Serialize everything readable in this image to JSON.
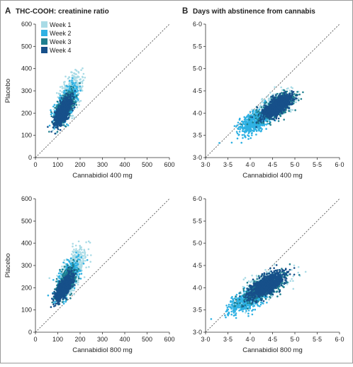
{
  "panels": {
    "a": {
      "letter": "A",
      "title": "THC-COOH: creatinine ratio"
    },
    "b": {
      "letter": "B",
      "title": "Days with abstinence from cannabis"
    }
  },
  "legend": [
    "Week 1",
    "Week 2",
    "Week 3",
    "Week 4"
  ],
  "colors": {
    "week1": "#a9dbe6",
    "week2": "#2fb1e3",
    "week3": "#1f7f8f",
    "week4": "#17508a",
    "diagonal": "#555555",
    "axis": "#333333",
    "border": "#9a9a9a"
  },
  "chart_data": [
    {
      "id": "A-top",
      "type": "scatter",
      "title": "THC-COOH: creatinine ratio",
      "xlabel": "Cannabidiol 400 mg",
      "ylabel": "Placebo",
      "xlim": [
        0,
        600
      ],
      "ylim": [
        0,
        600
      ],
      "xticks": [
        "0",
        "100",
        "200",
        "300",
        "400",
        "500",
        "600"
      ],
      "yticks": [
        "0",
        "100",
        "200",
        "300",
        "400",
        "500",
        "600"
      ],
      "reference_line": "y = x",
      "series": [
        {
          "name": "Week 1",
          "center": [
            150,
            275
          ],
          "spread": [
            28,
            48
          ],
          "corr": 0.6,
          "n": 600
        },
        {
          "name": "Week 2",
          "center": [
            140,
            245
          ],
          "spread": [
            24,
            42
          ],
          "corr": 0.65,
          "n": 520
        },
        {
          "name": "Week 3",
          "center": [
            130,
            222
          ],
          "spread": [
            22,
            36
          ],
          "corr": 0.65,
          "n": 520
        },
        {
          "name": "Week 4",
          "center": [
            122,
            205
          ],
          "spread": [
            18,
            30
          ],
          "corr": 0.7,
          "n": 800
        }
      ]
    },
    {
      "id": "B-top",
      "type": "scatter",
      "title": "Days with abstinence from cannabis",
      "xlabel": "Cannabidiol 400 mg",
      "ylabel": "",
      "xlim": [
        3.0,
        6.0
      ],
      "ylim": [
        3.0,
        6.0
      ],
      "xticks": [
        "3·0",
        "3·5",
        "4·0",
        "4·5",
        "5·0",
        "5·5",
        "6·0"
      ],
      "yticks": [
        "3·0",
        "3·5",
        "4·0",
        "4·5",
        "5·0",
        "5·5",
        "6·0"
      ],
      "reference_line": "y = x",
      "series": [
        {
          "name": "Week 1",
          "center": [
            4.55,
            4.15
          ],
          "spread": [
            0.22,
            0.17
          ],
          "corr": 0.6,
          "n": 450
        },
        {
          "name": "Week 2",
          "center": [
            4.1,
            3.8
          ],
          "spread": [
            0.18,
            0.14
          ],
          "corr": 0.6,
          "n": 500
        },
        {
          "name": "Week 3",
          "center": [
            4.6,
            4.15
          ],
          "spread": [
            0.2,
            0.16
          ],
          "corr": 0.7,
          "n": 550
        },
        {
          "name": "Week 4",
          "center": [
            4.6,
            4.15
          ],
          "spread": [
            0.16,
            0.13
          ],
          "corr": 0.7,
          "n": 950
        }
      ]
    },
    {
      "id": "A-bottom",
      "type": "scatter",
      "title": "",
      "xlabel": "Cannabidiol 800 mg",
      "ylabel": "Placebo",
      "xlim": [
        0,
        600
      ],
      "ylim": [
        0,
        600
      ],
      "xticks": [
        "0",
        "100",
        "200",
        "300",
        "400",
        "500",
        "600"
      ],
      "yticks": [
        "0",
        "100",
        "200",
        "300",
        "400",
        "500",
        "600"
      ],
      "reference_line": "y = x",
      "series": [
        {
          "name": "Week 1",
          "center": [
            160,
            270
          ],
          "spread": [
            30,
            50
          ],
          "corr": 0.6,
          "n": 600
        },
        {
          "name": "Week 2",
          "center": [
            145,
            240
          ],
          "spread": [
            26,
            42
          ],
          "corr": 0.65,
          "n": 520
        },
        {
          "name": "Week 3",
          "center": [
            135,
            220
          ],
          "spread": [
            22,
            36
          ],
          "corr": 0.65,
          "n": 520
        },
        {
          "name": "Week 4",
          "center": [
            128,
            200
          ],
          "spread": [
            18,
            28
          ],
          "corr": 0.7,
          "n": 800
        }
      ]
    },
    {
      "id": "B-bottom",
      "type": "scatter",
      "title": "",
      "xlabel": "Cannabidiol 800 mg",
      "ylabel": "",
      "xlim": [
        3.0,
        6.0
      ],
      "ylim": [
        3.0,
        6.0
      ],
      "xticks": [
        "3·0",
        "3·5",
        "4·0",
        "4·5",
        "5·0",
        "5·5",
        "6·0"
      ],
      "yticks": [
        "3·0",
        "3·5",
        "4·0",
        "4·5",
        "5·0",
        "5·5",
        "6·0"
      ],
      "reference_line": "y = x",
      "series": [
        {
          "name": "Week 1",
          "center": [
            4.35,
            4.05
          ],
          "spread": [
            0.25,
            0.17
          ],
          "corr": 0.6,
          "n": 450
        },
        {
          "name": "Week 2",
          "center": [
            3.95,
            3.72
          ],
          "spread": [
            0.22,
            0.14
          ],
          "corr": 0.6,
          "n": 550
        },
        {
          "name": "Week 3",
          "center": [
            4.3,
            4.0
          ],
          "spread": [
            0.24,
            0.16
          ],
          "corr": 0.7,
          "n": 550
        },
        {
          "name": "Week 4",
          "center": [
            4.35,
            4.05
          ],
          "spread": [
            0.2,
            0.14
          ],
          "corr": 0.7,
          "n": 1000
        }
      ]
    }
  ]
}
